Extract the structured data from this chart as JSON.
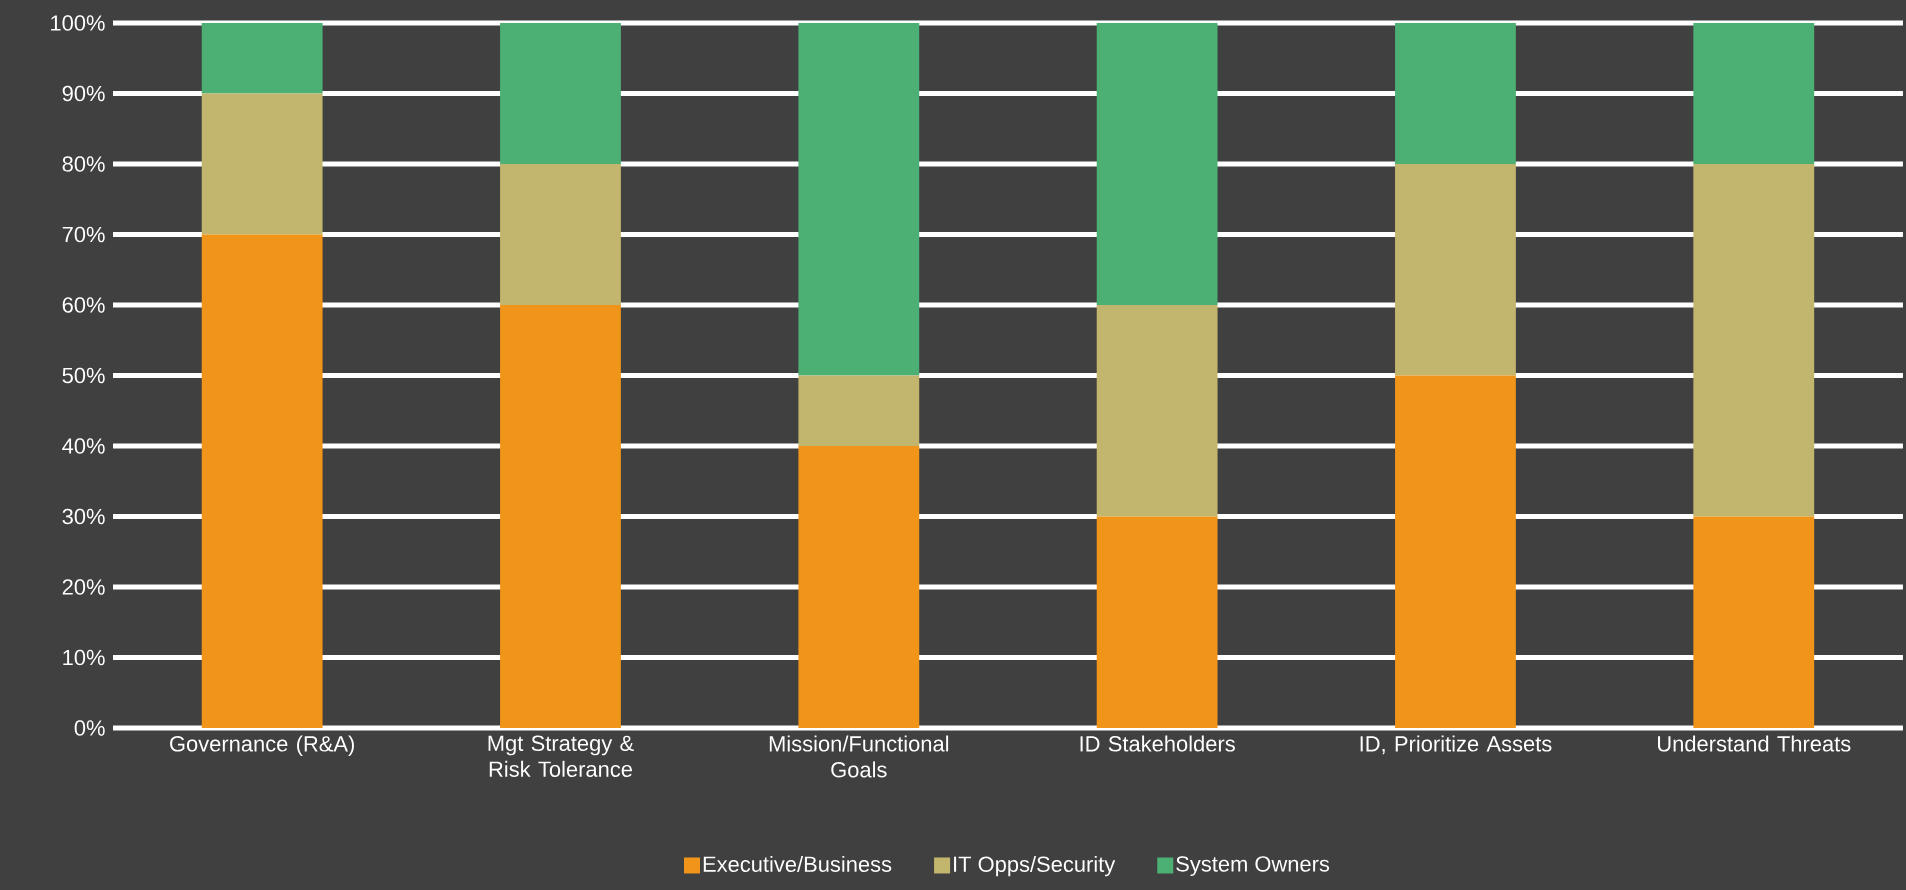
{
  "chart_data": {
    "type": "bar",
    "stacked": true,
    "categories": [
      "Governance (R&A)",
      "Mgt Strategy & Risk Tolerance",
      "Mission/Functional Goals",
      "ID Stakeholders",
      "ID, Prioritize Assets",
      "Understand Threats"
    ],
    "series": [
      {
        "name": "Executive/Business",
        "color": "#f0941a",
        "values": [
          70,
          60,
          40,
          30,
          50,
          30
        ]
      },
      {
        "name": "IT Opps/Security",
        "color": "#c2b56e",
        "values": [
          20,
          20,
          10,
          30,
          30,
          50
        ]
      },
      {
        "name": "System Owners",
        "color": "#4caf73",
        "values": [
          10,
          20,
          50,
          40,
          20,
          20
        ]
      }
    ],
    "ylim": [
      0,
      100
    ],
    "yticks": [
      {
        "value": 0,
        "label": "0%"
      },
      {
        "value": 10,
        "label": "10%"
      },
      {
        "value": 20,
        "label": "20%"
      },
      {
        "value": 30,
        "label": "30%"
      },
      {
        "value": 40,
        "label": "40%"
      },
      {
        "value": 50,
        "label": "50%"
      },
      {
        "value": 60,
        "label": "60%"
      },
      {
        "value": 70,
        "label": "70%"
      },
      {
        "value": 80,
        "label": "80%"
      },
      {
        "value": 90,
        "label": "90%"
      },
      {
        "value": 100,
        "label": "100%"
      }
    ],
    "grid": "y",
    "legend": "bottom"
  }
}
